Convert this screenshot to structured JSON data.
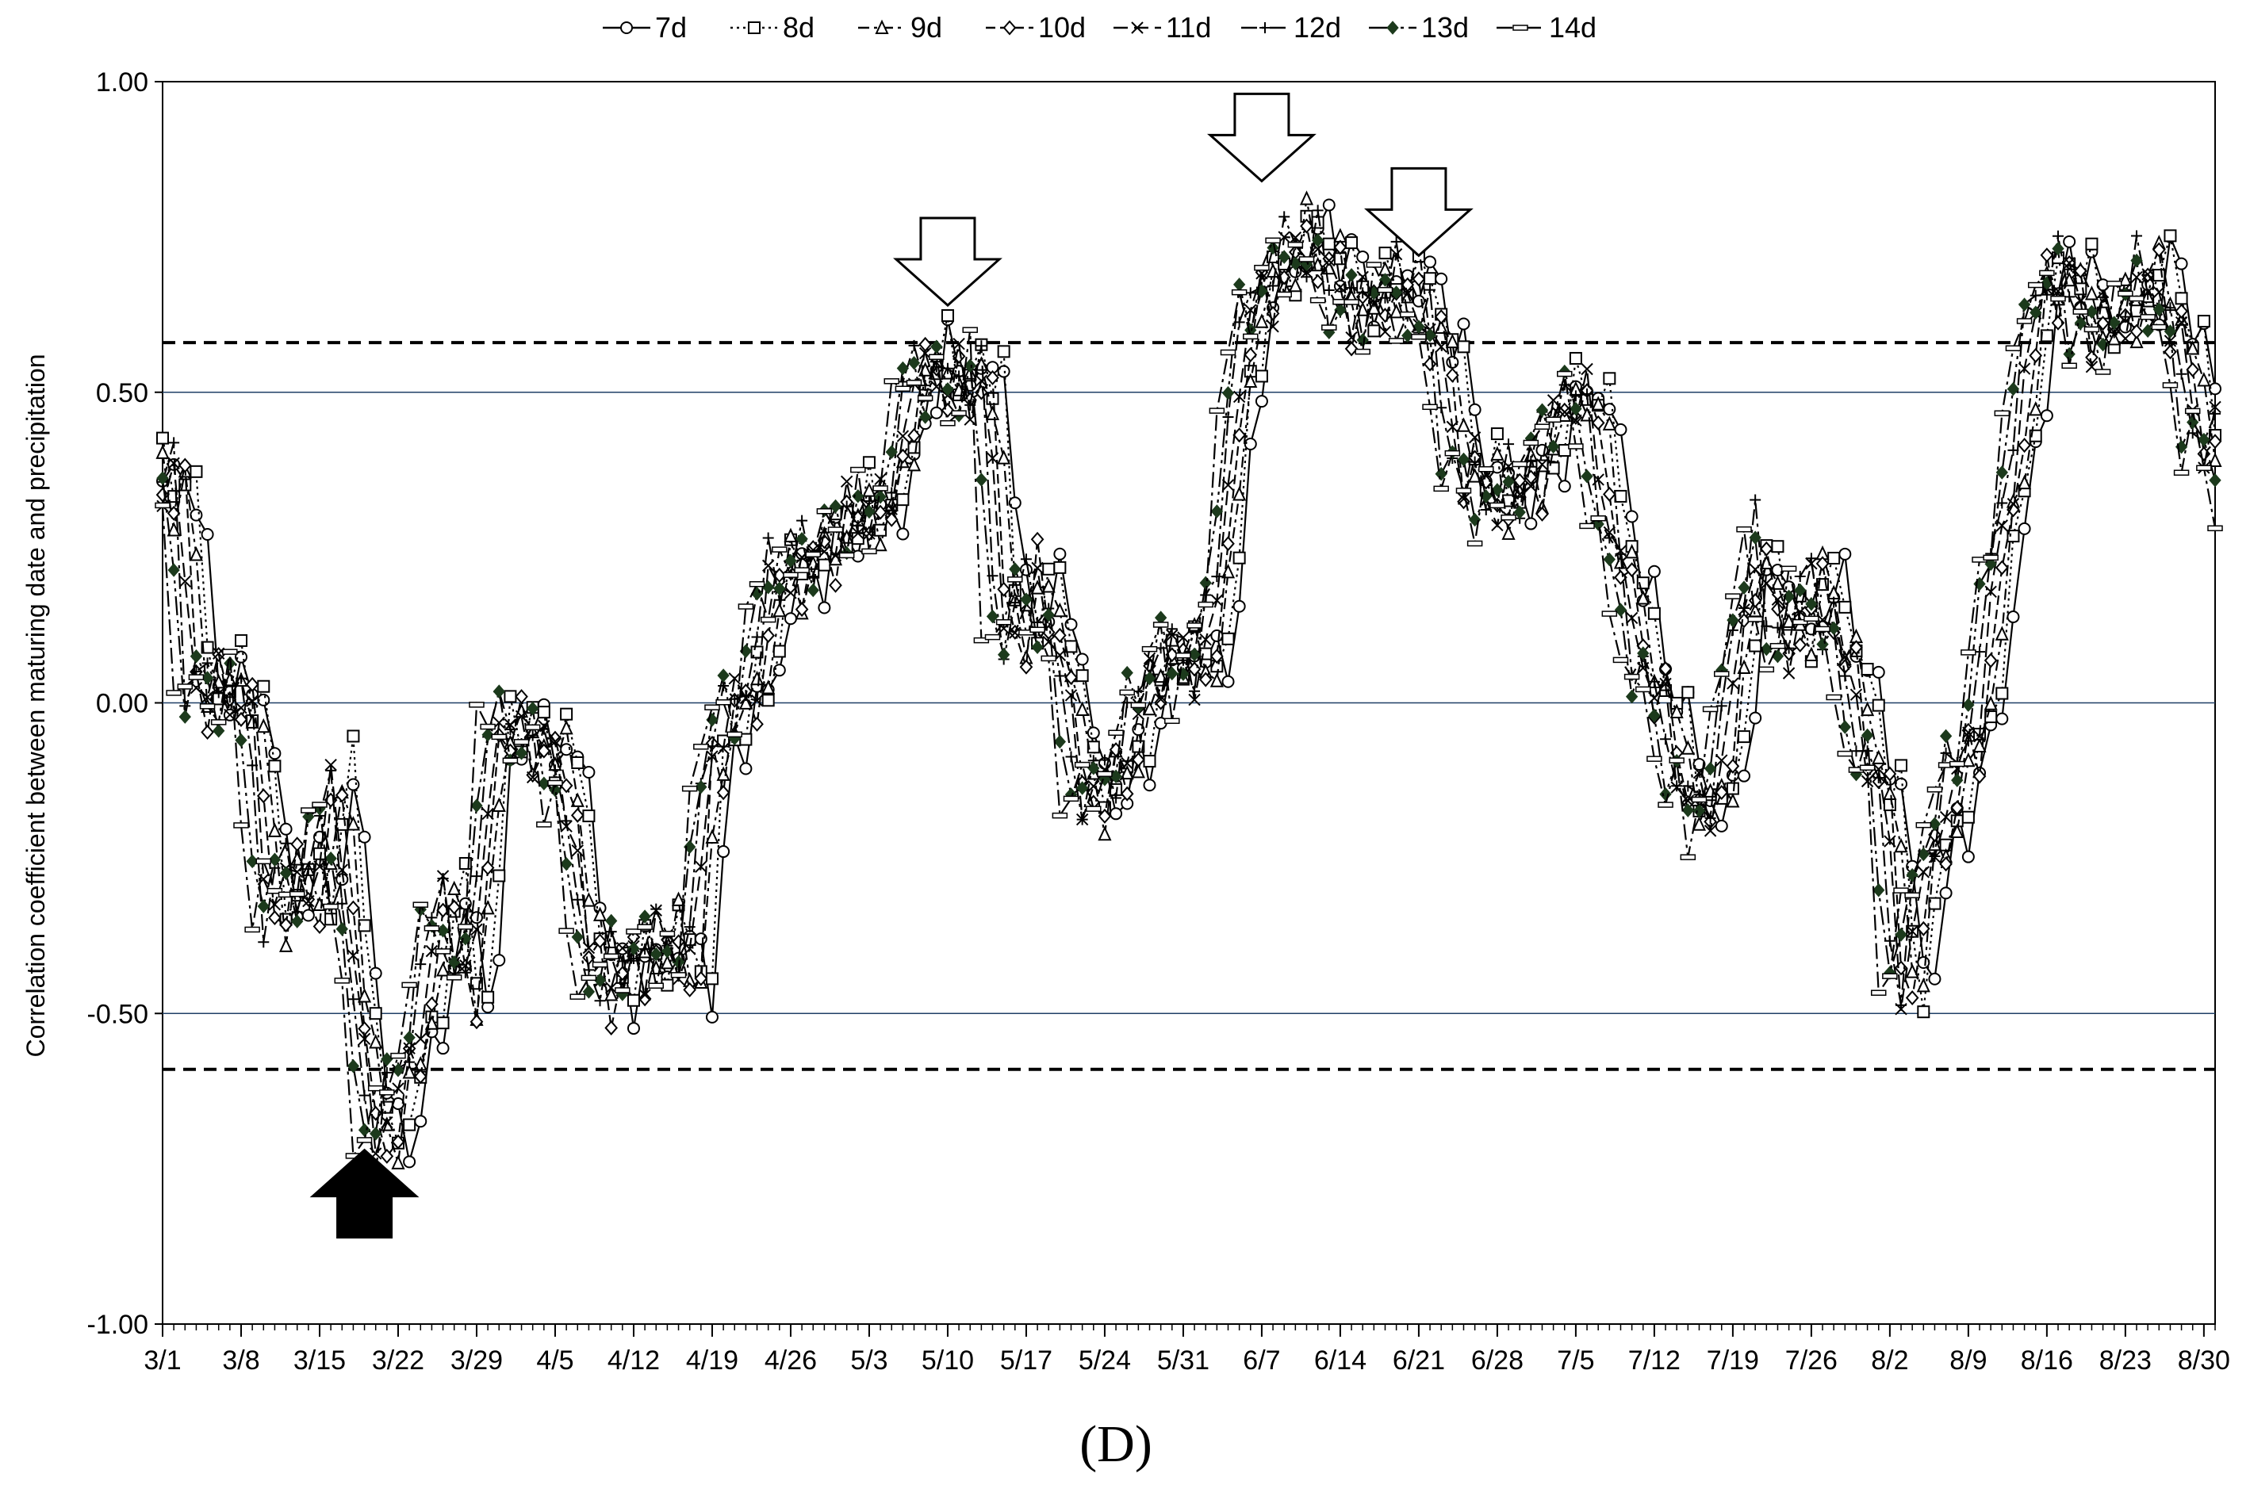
{
  "chart_data": {
    "type": "line",
    "title": "",
    "panel_label": "(D)",
    "xlabel": "",
    "ylabel": "Correlation coefficient between maturing date and precipitation",
    "ylim": [
      -1.0,
      1.0
    ],
    "y_ticks": [
      {
        "value": 1.0,
        "label": "1.00"
      },
      {
        "value": 0.5,
        "label": "0.50"
      },
      {
        "value": 0.0,
        "label": "0.00"
      },
      {
        "value": -0.5,
        "label": "-0.50"
      },
      {
        "value": -1.0,
        "label": "-1.00"
      }
    ],
    "x_range_days": [
      0,
      183
    ],
    "x_ticks": [
      {
        "day": 0,
        "label": "3/1"
      },
      {
        "day": 7,
        "label": "3/8"
      },
      {
        "day": 14,
        "label": "3/15"
      },
      {
        "day": 21,
        "label": "3/22"
      },
      {
        "day": 28,
        "label": "3/29"
      },
      {
        "day": 35,
        "label": "4/5"
      },
      {
        "day": 42,
        "label": "4/12"
      },
      {
        "day": 49,
        "label": "4/19"
      },
      {
        "day": 56,
        "label": "4/26"
      },
      {
        "day": 63,
        "label": "5/3"
      },
      {
        "day": 70,
        "label": "5/10"
      },
      {
        "day": 77,
        "label": "5/17"
      },
      {
        "day": 84,
        "label": "5/24"
      },
      {
        "day": 91,
        "label": "5/31"
      },
      {
        "day": 98,
        "label": "6/7"
      },
      {
        "day": 105,
        "label": "6/14"
      },
      {
        "day": 112,
        "label": "6/21"
      },
      {
        "day": 119,
        "label": "6/28"
      },
      {
        "day": 126,
        "label": "7/5"
      },
      {
        "day": 133,
        "label": "7/12"
      },
      {
        "day": 140,
        "label": "7/19"
      },
      {
        "day": 147,
        "label": "7/26"
      },
      {
        "day": 154,
        "label": "8/2"
      },
      {
        "day": 161,
        "label": "8/9"
      },
      {
        "day": 168,
        "label": "8/16"
      },
      {
        "day": 175,
        "label": "8/23"
      },
      {
        "day": 182,
        "label": "8/30"
      }
    ],
    "grid": false,
    "reference_lines": [
      {
        "value": 0.5,
        "style": "solid",
        "color": "#1f3f66"
      },
      {
        "value": 0.0,
        "style": "solid",
        "color": "#1f3f66"
      },
      {
        "value": -0.5,
        "style": "solid",
        "color": "#1f3f66"
      },
      {
        "value": 0.58,
        "style": "dashed",
        "color": "#000000"
      },
      {
        "value": -0.59,
        "style": "dashed",
        "color": "#000000"
      }
    ],
    "arrows": [
      {
        "day": 18,
        "tip_value": -0.72,
        "direction": "up",
        "fill": "black"
      },
      {
        "day": 70,
        "tip_value": 0.64,
        "direction": "down",
        "fill": "white"
      },
      {
        "day": 98,
        "tip_value": 0.84,
        "direction": "down",
        "fill": "white"
      },
      {
        "day": 112,
        "tip_value": 0.72,
        "direction": "down",
        "fill": "white"
      }
    ],
    "legend_position": "top-center",
    "anchors": [
      [
        0,
        0.35
      ],
      [
        1,
        0.05
      ],
      [
        2,
        0.03
      ],
      [
        4,
        0.02
      ],
      [
        6,
        0.02
      ],
      [
        8,
        -0.33
      ],
      [
        10,
        -0.28
      ],
      [
        12,
        -0.3
      ],
      [
        14,
        -0.12
      ],
      [
        15,
        -0.3
      ],
      [
        16,
        -0.52
      ],
      [
        17,
        -0.68
      ],
      [
        18,
        -0.7
      ],
      [
        20,
        -0.62
      ],
      [
        21,
        -0.55
      ],
      [
        22,
        -0.45
      ],
      [
        24,
        -0.3
      ],
      [
        26,
        -0.5
      ],
      [
        27,
        -0.3
      ],
      [
        28,
        0.0
      ],
      [
        29,
        -0.05
      ],
      [
        31,
        -0.05
      ],
      [
        33,
        -0.08
      ],
      [
        35,
        -0.15
      ],
      [
        36,
        -0.4
      ],
      [
        38,
        -0.45
      ],
      [
        40,
        -0.42
      ],
      [
        42,
        -0.4
      ],
      [
        44,
        -0.38
      ],
      [
        46,
        -0.45
      ],
      [
        47,
        -0.1
      ],
      [
        49,
        -0.02
      ],
      [
        51,
        0.02
      ],
      [
        53,
        0.2
      ],
      [
        56,
        0.22
      ],
      [
        58,
        0.27
      ],
      [
        60,
        0.3
      ],
      [
        62,
        0.32
      ],
      [
        63,
        0.28
      ],
      [
        64,
        0.4
      ],
      [
        65,
        0.5
      ],
      [
        67,
        0.55
      ],
      [
        69,
        0.52
      ],
      [
        70,
        0.5
      ],
      [
        72,
        0.55
      ],
      [
        73,
        0.15
      ],
      [
        75,
        0.12
      ],
      [
        76,
        0.2
      ],
      [
        77,
        0.15
      ],
      [
        78,
        0.15
      ],
      [
        80,
        -0.12
      ],
      [
        82,
        -0.15
      ],
      [
        84,
        -0.1
      ],
      [
        86,
        0.0
      ],
      [
        88,
        0.1
      ],
      [
        90,
        0.05
      ],
      [
        92,
        0.1
      ],
      [
        93,
        0.2
      ],
      [
        94,
        0.5
      ],
      [
        96,
        0.65
      ],
      [
        98,
        0.7
      ],
      [
        100,
        0.75
      ],
      [
        102,
        0.72
      ],
      [
        104,
        0.65
      ],
      [
        106,
        0.64
      ],
      [
        108,
        0.68
      ],
      [
        110,
        0.66
      ],
      [
        111,
        0.62
      ],
      [
        112,
        0.6
      ],
      [
        114,
        0.4
      ],
      [
        116,
        0.35
      ],
      [
        118,
        0.33
      ],
      [
        120,
        0.35
      ],
      [
        122,
        0.42
      ],
      [
        124,
        0.52
      ],
      [
        126,
        0.45
      ],
      [
        128,
        0.25
      ],
      [
        130,
        0.1
      ],
      [
        132,
        0.0
      ],
      [
        134,
        -0.12
      ],
      [
        136,
        -0.2
      ],
      [
        138,
        -0.05
      ],
      [
        140,
        0.2
      ],
      [
        141,
        0.3
      ],
      [
        142,
        0.1
      ],
      [
        144,
        0.12
      ],
      [
        146,
        0.2
      ],
      [
        148,
        0.1
      ],
      [
        150,
        -0.05
      ],
      [
        152,
        -0.15
      ],
      [
        153,
        -0.4
      ],
      [
        154,
        -0.45
      ],
      [
        156,
        -0.25
      ],
      [
        158,
        -0.15
      ],
      [
        160,
        -0.05
      ],
      [
        162,
        0.2
      ],
      [
        164,
        0.45
      ],
      [
        166,
        0.68
      ],
      [
        168,
        0.7
      ],
      [
        170,
        0.62
      ],
      [
        172,
        0.6
      ],
      [
        174,
        0.65
      ],
      [
        176,
        0.7
      ],
      [
        178,
        0.6
      ],
      [
        180,
        0.45
      ],
      [
        182,
        0.4
      ],
      [
        183,
        0.35
      ]
    ],
    "series": [
      {
        "name": "7d",
        "marker": "circle",
        "lag": 3.5,
        "amp": 1.02,
        "offset": 0.0,
        "dash": ""
      },
      {
        "name": "8d",
        "marker": "square",
        "lag": 3.0,
        "amp": 1.01,
        "offset": 0.01,
        "dash": "3,5"
      },
      {
        "name": "9d",
        "marker": "triangle",
        "lag": 2.5,
        "amp": 1.0,
        "offset": 0.0,
        "dash": "14,6,4,6"
      },
      {
        "name": "10d",
        "marker": "diamond",
        "lag": 2.0,
        "amp": 1.0,
        "offset": -0.01,
        "dash": "12,6"
      },
      {
        "name": "11d",
        "marker": "x",
        "lag": 1.5,
        "amp": 0.99,
        "offset": 0.0,
        "dash": "18,8"
      },
      {
        "name": "12d",
        "marker": "plus",
        "lag": 1.0,
        "amp": 0.99,
        "offset": 0.01,
        "dash": "20,6,4,6"
      },
      {
        "name": "13d",
        "marker": "filled-diamond",
        "lag": 0.5,
        "amp": 0.98,
        "offset": 0.0,
        "dash": "24,6,4,6,4,6"
      },
      {
        "name": "14d",
        "marker": "dash",
        "lag": 0.0,
        "amp": 0.98,
        "offset": -0.01,
        "dash": "20,6,4,6"
      }
    ],
    "colors": {
      "line": "#000000",
      "filled_marker": "#1c3a1c",
      "reference": "#1f3f66"
    }
  }
}
